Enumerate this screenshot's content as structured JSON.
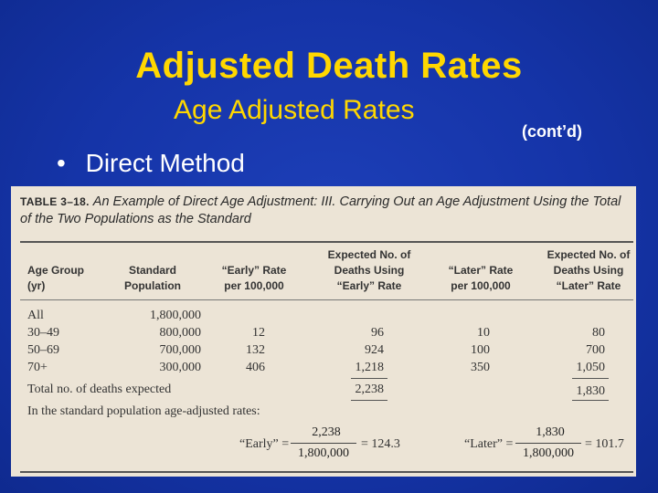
{
  "slide": {
    "title": "Adjusted Death Rates",
    "subtitle": "Age Adjusted Rates",
    "subtitle_note": "(cont’d)",
    "bullet_mark": "•",
    "bullet_text": "Direct Method"
  },
  "table": {
    "number": "TABLE 3–18.",
    "caption": "An Example of Direct Age Adjustment: III. Carrying Out an Age Adjustment Using the Total of the Two Populations as the Standard",
    "headers": {
      "age_group": [
        "Age Group",
        "(yr)"
      ],
      "standard_population": [
        "Standard",
        "Population"
      ],
      "early_rate": [
        "“Early” Rate",
        "per 100,000"
      ],
      "expected_early": [
        "Expected No. of",
        "Deaths Using",
        "“Early” Rate"
      ],
      "later_rate": [
        "“Later” Rate",
        "per 100,000"
      ],
      "expected_later": [
        "Expected No. of",
        "Deaths Using",
        "“Later” Rate"
      ]
    },
    "rows": [
      {
        "age": "All",
        "pop": "1,800,000",
        "early": "",
        "exp_early": "",
        "later": "",
        "exp_later": ""
      },
      {
        "age": "30–49",
        "pop": "800,000",
        "early": "12",
        "exp_early": "96",
        "later": "10",
        "exp_later": "80"
      },
      {
        "age": "50–69",
        "pop": "700,000",
        "early": "132",
        "exp_early": "924",
        "later": "100",
        "exp_later": "700"
      },
      {
        "age": "70+",
        "pop": "300,000",
        "early": "406",
        "exp_early": "1,218",
        "later": "350",
        "exp_later": "1,050"
      }
    ],
    "total_label": "Total no. of deaths expected",
    "total_early": "2,238",
    "total_later": "1,830",
    "adjusted_label": "In the standard population age-adjusted rates:",
    "early_formula": {
      "label": "“Early” =",
      "numerator": "2,238",
      "denominator": "1,800,000",
      "result": "= 124.3"
    },
    "later_formula": {
      "label": "“Later” =",
      "numerator": "1,830",
      "denominator": "1,800,000",
      "result": "= 101.7"
    }
  }
}
